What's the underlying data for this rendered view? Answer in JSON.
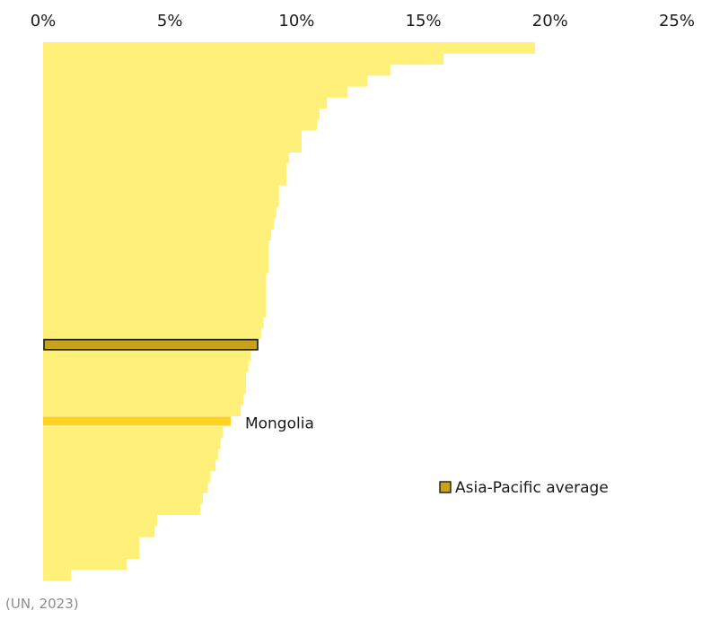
{
  "chart_data": {
    "type": "bar",
    "orientation": "horizontal",
    "x_axis_position": "top",
    "xlim": [
      0,
      25
    ],
    "xticks": [
      "0%",
      "5%",
      "10%",
      "15%",
      "20%",
      "25%"
    ],
    "grid": false,
    "values": [
      19.4,
      15.8,
      13.7,
      12.8,
      12.0,
      11.2,
      10.9,
      10.8,
      10.2,
      10.2,
      9.7,
      9.6,
      9.6,
      9.3,
      9.3,
      9.2,
      9.1,
      9.0,
      8.9,
      8.9,
      8.9,
      8.8,
      8.8,
      8.8,
      8.8,
      8.7,
      8.6,
      8.5,
      8.2,
      8.1,
      8.0,
      8.0,
      7.9,
      7.8,
      7.4,
      7.1,
      7.0,
      6.9,
      6.8,
      6.6,
      6.5,
      6.3,
      6.2,
      4.5,
      4.4,
      3.8,
      3.8,
      3.3,
      1.1
    ],
    "highlight": [
      {
        "index": 27,
        "label": "Asia-Pacific average",
        "role": "average",
        "color": "#c7a21a",
        "border": "#1a1a1a"
      },
      {
        "index": 34,
        "label": "Mongolia",
        "role": "country",
        "color": "#ffd21f"
      }
    ],
    "base_color": "#fff07a",
    "legend": {
      "label": "Asia-Pacific average",
      "position": "right"
    },
    "source": "(UN, 2023)"
  }
}
